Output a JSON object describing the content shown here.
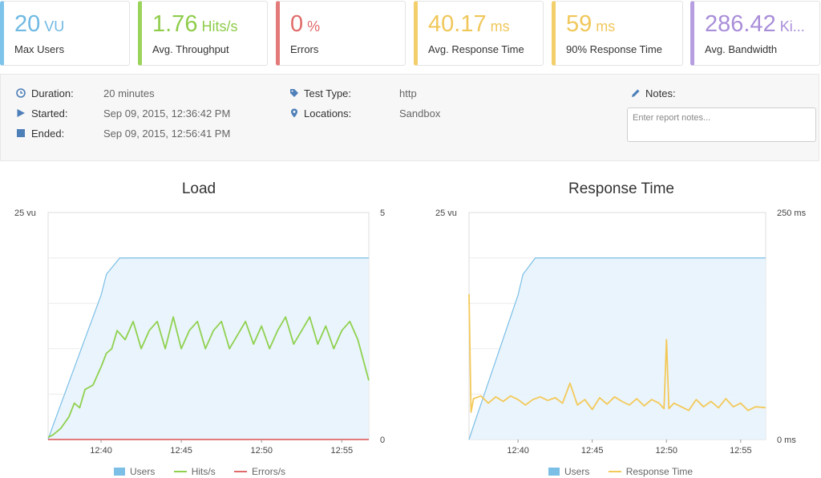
{
  "summary": [
    {
      "value": "20",
      "unit": "VU",
      "label": "Max Users",
      "color": "#7ec4ea",
      "text_color": "#6fb9e3"
    },
    {
      "value": "1.76",
      "unit": "Hits/s",
      "label": "Avg. Throughput",
      "color": "#9bd45a",
      "text_color": "#8fcc4a"
    },
    {
      "value": "0",
      "unit": "%",
      "label": "Errors",
      "color": "#e37a7a",
      "text_color": "#e06a6a"
    },
    {
      "value": "40.17",
      "unit": "ms",
      "label": "Avg. Response Time",
      "color": "#f3cf6b",
      "text_color": "#f0c75a"
    },
    {
      "value": "59",
      "unit": "ms",
      "label": "90% Response Time",
      "color": "#f3cf6b",
      "text_color": "#f0c75a"
    },
    {
      "value": "286.42",
      "unit": "Ki...",
      "label": "Avg. Bandwidth",
      "color": "#b69ee0",
      "text_color": "#a98ed9"
    }
  ],
  "info": {
    "duration_label": "Duration:",
    "duration": "20 minutes",
    "started_label": "Started:",
    "started": "Sep 09, 2015, 12:36:42 PM",
    "ended_label": "Ended:",
    "ended": "Sep 09, 2015, 12:56:41 PM",
    "test_type_label": "Test Type:",
    "test_type": "http",
    "locations_label": "Locations:",
    "locations": "Sandbox",
    "notes_label": "Notes:",
    "notes_placeholder": "Enter report notes...",
    "icons": {
      "duration": "clock-icon",
      "started": "play-icon",
      "ended": "stop-icon",
      "test_type": "tag-icon",
      "locations": "map-marker-icon",
      "notes": "pencil-icon"
    }
  },
  "chart_data": [
    {
      "type": "line",
      "title": "Load",
      "x_ticks": [
        "12:40",
        "12:45",
        "12:50",
        "12:55"
      ],
      "x_range": [
        "12:36:42",
        "12:56:41"
      ],
      "y_left": {
        "ylim": [
          0,
          25
        ],
        "top_label": "25 vu",
        "unit": "vu"
      },
      "y_right": {
        "ylim": [
          0,
          5
        ],
        "top_label": "5",
        "bottom_label": "0"
      },
      "grid": true,
      "legend_position": "bottom",
      "series": [
        {
          "name": "Users",
          "style": "area",
          "axis": "left",
          "color": "#7bbfe6",
          "x": [
            "12:36:42",
            "12:37:00",
            "12:38:00",
            "12:39:00",
            "12:40:00",
            "12:40:20",
            "12:41:10",
            "12:56:41"
          ],
          "values": [
            0,
            1.5,
            6.3,
            11.1,
            15.9,
            18.2,
            20,
            20
          ]
        },
        {
          "name": "Hits/s",
          "style": "line",
          "axis": "right",
          "color": "#8fd14f",
          "x": [
            "12:36:42",
            "12:37:00",
            "12:37:30",
            "12:38:00",
            "12:38:20",
            "12:38:40",
            "12:39:00",
            "12:39:30",
            "12:40:00",
            "12:40:20",
            "12:40:40",
            "12:41:00",
            "12:41:30",
            "12:42:00",
            "12:42:30",
            "12:43:00",
            "12:43:30",
            "12:44:00",
            "12:44:30",
            "12:45:00",
            "12:45:30",
            "12:46:00",
            "12:46:30",
            "12:47:00",
            "12:47:30",
            "12:48:00",
            "12:48:30",
            "12:49:00",
            "12:49:30",
            "12:50:00",
            "12:50:30",
            "12:51:00",
            "12:51:30",
            "12:52:00",
            "12:52:30",
            "12:53:00",
            "12:53:30",
            "12:54:00",
            "12:54:30",
            "12:55:00",
            "12:55:30",
            "12:56:00",
            "12:56:41"
          ],
          "values": [
            0.05,
            0.1,
            0.25,
            0.5,
            0.8,
            0.7,
            1.1,
            1.2,
            1.6,
            1.9,
            2.0,
            2.4,
            2.2,
            2.6,
            2.0,
            2.4,
            2.6,
            2.0,
            2.7,
            2.0,
            2.4,
            2.6,
            2.0,
            2.4,
            2.6,
            2.0,
            2.3,
            2.6,
            2.1,
            2.5,
            2.0,
            2.4,
            2.7,
            2.1,
            2.4,
            2.7,
            2.1,
            2.5,
            2.0,
            2.4,
            2.6,
            2.2,
            1.3
          ]
        },
        {
          "name": "Errors/s",
          "style": "line",
          "axis": "right",
          "color": "#e06a6a",
          "x": [
            "12:36:42",
            "12:56:41"
          ],
          "values": [
            0,
            0
          ]
        }
      ]
    },
    {
      "type": "line",
      "title": "Response Time",
      "x_ticks": [
        "12:40",
        "12:45",
        "12:50",
        "12:55"
      ],
      "x_range": [
        "12:36:42",
        "12:56:41"
      ],
      "y_left": {
        "ylim": [
          0,
          25
        ],
        "top_label": "25 vu",
        "unit": "vu"
      },
      "y_right": {
        "ylim": [
          0,
          250
        ],
        "top_label": "250 ms",
        "bottom_label": "0 ms",
        "unit": "ms"
      },
      "grid": true,
      "legend_position": "bottom",
      "series": [
        {
          "name": "Users",
          "style": "area",
          "axis": "left",
          "color": "#7bbfe6",
          "x": [
            "12:36:42",
            "12:37:00",
            "12:38:00",
            "12:39:00",
            "12:40:00",
            "12:40:20",
            "12:41:10",
            "12:56:41"
          ],
          "values": [
            0,
            1.5,
            6.3,
            11.1,
            15.9,
            18.2,
            20,
            20
          ]
        },
        {
          "name": "Response Time",
          "style": "line",
          "axis": "right",
          "color": "#f3c959",
          "x": [
            "12:36:42",
            "12:36:50",
            "12:37:00",
            "12:37:30",
            "12:38:00",
            "12:38:30",
            "12:39:00",
            "12:39:30",
            "12:40:00",
            "12:40:30",
            "12:41:00",
            "12:41:30",
            "12:42:00",
            "12:42:30",
            "12:43:00",
            "12:43:30",
            "12:44:00",
            "12:44:30",
            "12:45:00",
            "12:45:30",
            "12:46:00",
            "12:46:30",
            "12:47:00",
            "12:47:30",
            "12:48:00",
            "12:48:30",
            "12:49:00",
            "12:49:30",
            "12:49:50",
            "12:50:00",
            "12:50:10",
            "12:50:30",
            "12:51:00",
            "12:51:30",
            "12:52:00",
            "12:52:30",
            "12:53:00",
            "12:53:30",
            "12:54:00",
            "12:54:30",
            "12:55:00",
            "12:55:30",
            "12:56:00",
            "12:56:41"
          ],
          "values": [
            160,
            30,
            45,
            48,
            40,
            47,
            42,
            48,
            44,
            38,
            44,
            47,
            43,
            46,
            40,
            62,
            38,
            44,
            33,
            46,
            39,
            47,
            42,
            38,
            45,
            37,
            44,
            40,
            34,
            110,
            34,
            40,
            36,
            32,
            44,
            36,
            42,
            35,
            45,
            36,
            40,
            32,
            36,
            35
          ]
        }
      ]
    }
  ]
}
